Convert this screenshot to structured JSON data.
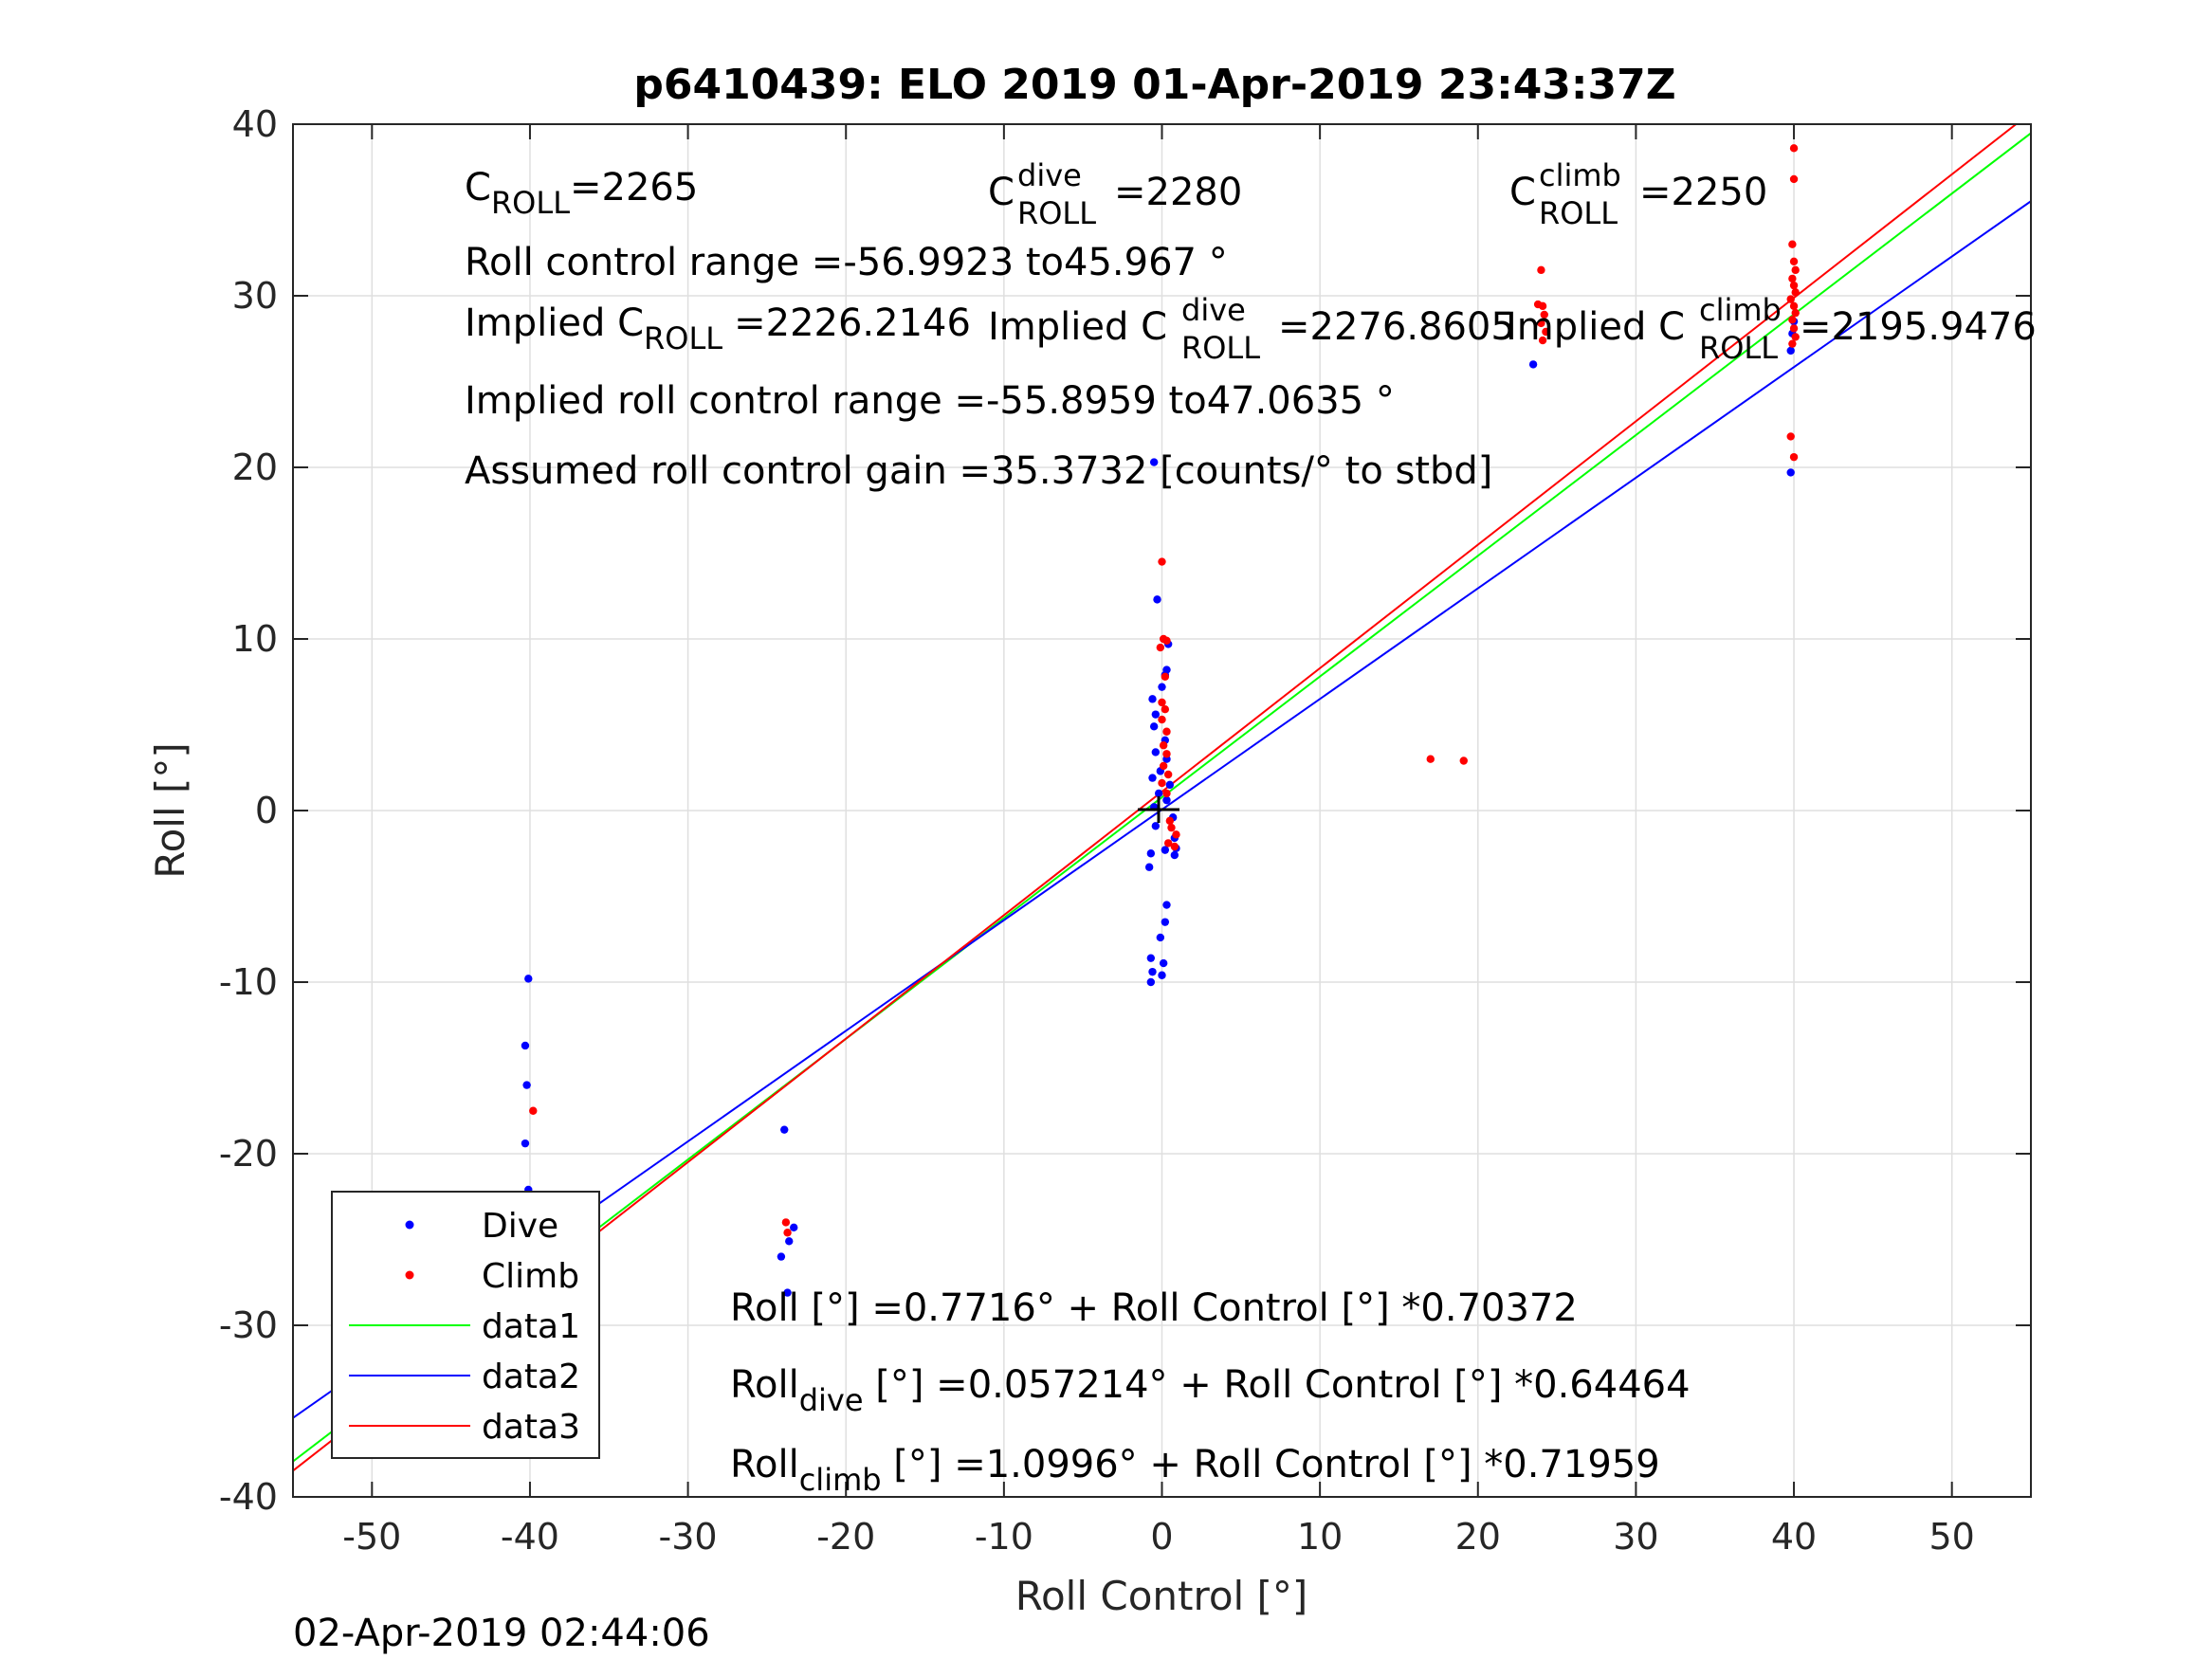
{
  "chart_data": {
    "type": "scatter",
    "title": "p6410439: ELO 2019 01-Apr-2019 23:43:37Z",
    "xlabel": "Roll Control [°]",
    "ylabel": "Roll [°]",
    "xlim": [
      -55,
      55
    ],
    "ylim": [
      -40,
      40
    ],
    "xticks": [
      "-50",
      "-40",
      "-30",
      "-20",
      "-10",
      "0",
      "10",
      "20",
      "30",
      "40",
      "50"
    ],
    "yticks": [
      "-40",
      "-30",
      "-20",
      "-10",
      "0",
      "10",
      "20",
      "30",
      "40"
    ],
    "grid": true,
    "legend_position": "lower-left",
    "series": [
      {
        "name": "Dive",
        "kind": "points",
        "color": "#0000ff",
        "points": [
          [
            -40.1,
            -9.8
          ],
          [
            -40.3,
            -13.7
          ],
          [
            -40.2,
            -16.0
          ],
          [
            -40.3,
            -19.4
          ],
          [
            -40.1,
            -22.1
          ],
          [
            -40.2,
            -23.0
          ],
          [
            -40.0,
            -24.5
          ],
          [
            -39.9,
            -25.2
          ],
          [
            -40.2,
            -26.0
          ],
          [
            -40.0,
            -26.8
          ],
          [
            -39.8,
            -27.4
          ],
          [
            -40.1,
            -28.0
          ],
          [
            -39.7,
            -25.6
          ],
          [
            -40.3,
            -24.1
          ],
          [
            -23.9,
            -18.6
          ],
          [
            -23.3,
            -24.3
          ],
          [
            -23.6,
            -25.1
          ],
          [
            -24.1,
            -26.0
          ],
          [
            -23.7,
            -28.1
          ],
          [
            -0.5,
            20.3
          ],
          [
            -0.3,
            12.3
          ],
          [
            0.4,
            9.7
          ],
          [
            0.3,
            8.2
          ],
          [
            0.2,
            7.9
          ],
          [
            0.0,
            7.2
          ],
          [
            -0.6,
            6.5
          ],
          [
            -0.4,
            5.6
          ],
          [
            -0.5,
            4.9
          ],
          [
            0.2,
            4.1
          ],
          [
            -0.4,
            3.4
          ],
          [
            0.3,
            3.0
          ],
          [
            -0.1,
            2.3
          ],
          [
            -0.6,
            1.9
          ],
          [
            0.5,
            1.5
          ],
          [
            -0.2,
            1.0
          ],
          [
            0.3,
            0.6
          ],
          [
            -0.5,
            0.2
          ],
          [
            0.7,
            -0.4
          ],
          [
            -0.4,
            -0.9
          ],
          [
            0.8,
            -1.6
          ],
          [
            0.9,
            -2.2
          ],
          [
            -0.7,
            -2.5
          ],
          [
            0.2,
            -2.3
          ],
          [
            0.8,
            -2.6
          ],
          [
            -0.8,
            -3.3
          ],
          [
            0.3,
            -5.5
          ],
          [
            0.2,
            -6.5
          ],
          [
            -0.1,
            -7.4
          ],
          [
            -0.7,
            -8.6
          ],
          [
            0.1,
            -8.9
          ],
          [
            -0.6,
            -9.4
          ],
          [
            0.0,
            -9.6
          ],
          [
            -0.7,
            -10.0
          ],
          [
            23.5,
            26.0
          ],
          [
            39.8,
            19.7
          ],
          [
            39.8,
            26.8
          ],
          [
            39.9,
            27.8
          ],
          [
            40.0,
            28.5
          ]
        ]
      },
      {
        "name": "Climb",
        "kind": "points",
        "color": "#ff0000",
        "points": [
          [
            -39.8,
            -17.5
          ],
          [
            -40.0,
            -24.4
          ],
          [
            -39.9,
            -25.3
          ],
          [
            -40.1,
            -26.2
          ],
          [
            -23.8,
            -24.0
          ],
          [
            -23.7,
            -24.6
          ],
          [
            0.0,
            14.5
          ],
          [
            0.1,
            10.0
          ],
          [
            0.3,
            9.9
          ],
          [
            -0.1,
            9.5
          ],
          [
            0.2,
            7.8
          ],
          [
            0.0,
            6.3
          ],
          [
            0.2,
            5.9
          ],
          [
            0.0,
            5.3
          ],
          [
            0.3,
            4.6
          ],
          [
            0.1,
            3.8
          ],
          [
            0.3,
            3.3
          ],
          [
            0.1,
            2.6
          ],
          [
            0.4,
            2.1
          ],
          [
            0.0,
            1.6
          ],
          [
            0.3,
            1.0
          ],
          [
            0.5,
            -0.6
          ],
          [
            0.6,
            -1.0
          ],
          [
            0.9,
            -1.4
          ],
          [
            0.4,
            -1.9
          ],
          [
            0.8,
            -2.1
          ],
          [
            17.0,
            3.0
          ],
          [
            19.1,
            2.9
          ],
          [
            24.0,
            31.5
          ],
          [
            23.8,
            29.5
          ],
          [
            24.1,
            29.4
          ],
          [
            24.2,
            28.9
          ],
          [
            24.0,
            28.4
          ],
          [
            24.3,
            27.9
          ],
          [
            24.1,
            27.4
          ],
          [
            40.0,
            38.6
          ],
          [
            40.0,
            36.8
          ],
          [
            39.9,
            33.0
          ],
          [
            40.0,
            32.0
          ],
          [
            40.1,
            31.5
          ],
          [
            39.9,
            31.0
          ],
          [
            40.0,
            30.6
          ],
          [
            40.1,
            30.2
          ],
          [
            39.8,
            29.8
          ],
          [
            40.0,
            29.4
          ],
          [
            40.1,
            29.0
          ],
          [
            39.9,
            28.6
          ],
          [
            40.0,
            28.1
          ],
          [
            40.1,
            27.6
          ],
          [
            39.9,
            27.2
          ],
          [
            39.8,
            21.8
          ],
          [
            40.0,
            20.6
          ]
        ]
      },
      {
        "name": "data1",
        "kind": "line",
        "color": "#00ff00",
        "intercept": 0.7716,
        "slope": 0.70372
      },
      {
        "name": "data2",
        "kind": "line",
        "color": "#0000ff",
        "intercept": 0.057214,
        "slope": 0.64464
      },
      {
        "name": "data3",
        "kind": "line",
        "color": "#ff0000",
        "intercept": 1.0996,
        "slope": 0.71959
      }
    ],
    "annotations": {
      "c_roll": {
        "sym": "C",
        "sub": "ROLL",
        "value": "=2265"
      },
      "c_roll_dive": {
        "sym": "C",
        "sup": "dive",
        "sub": "ROLL",
        "value": "=2280"
      },
      "c_roll_climb": {
        "sym": "C",
        "sup": "climb",
        "sub": "ROLL",
        "value": "=2250"
      },
      "roll_range": "Roll control range =-56.9923 to45.967 °",
      "implied_c_roll": {
        "prefix": "Implied C",
        "sub": "ROLL",
        "value": "=2226.2146"
      },
      "implied_c_roll_dive": {
        "prefix": "Implied C",
        "sup": "dive",
        "sub": "ROLL",
        "value": "=2276.8605"
      },
      "implied_c_roll_climb": {
        "prefix": "Implied C",
        "sup": "climb",
        "sub": "ROLL",
        "value": "=2195.9476"
      },
      "implied_range": "Implied roll control range =-55.8959 to47.0635 °",
      "gain": "Assumed roll control gain =35.3732 [counts/° to stbd]",
      "fit_all": "Roll [°] =0.7716° + Roll Control [°] *0.70372",
      "fit_dive": {
        "prefix": "Roll",
        "sub": "dive",
        "rest": " [°] =0.057214° + Roll Control [°] *0.64464"
      },
      "fit_climb": {
        "prefix": "Roll",
        "sub": "climb",
        "rest": " [°] =1.0996° + Roll Control [°] *0.71959"
      }
    },
    "footer_timestamp": "02-Apr-2019 02:44:06"
  }
}
